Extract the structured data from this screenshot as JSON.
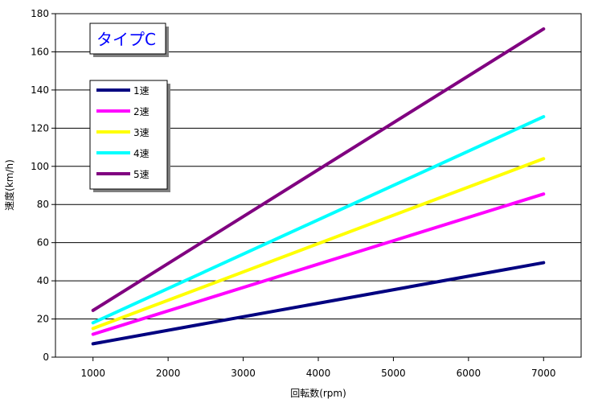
{
  "chart_data": {
    "type": "line",
    "title": "タイプC",
    "xlabel": "回転数(rpm)",
    "ylabel": "速度(km/h)",
    "x": [
      1000,
      7000
    ],
    "xlim": [
      500,
      7500
    ],
    "ylim": [
      0,
      180
    ],
    "x_ticks": [
      1000,
      2000,
      3000,
      4000,
      5000,
      6000,
      7000
    ],
    "y_ticks": [
      0,
      20,
      40,
      60,
      80,
      100,
      120,
      140,
      160,
      180
    ],
    "grid": "horizontal",
    "legend_position": "upper-left",
    "series": [
      {
        "name": "1速",
        "color": "#000080",
        "values": [
          7,
          49.5
        ]
      },
      {
        "name": "2速",
        "color": "#ff00ff",
        "values": [
          12,
          85.5
        ]
      },
      {
        "name": "3速",
        "color": "#ffff00",
        "values": [
          15,
          104
        ]
      },
      {
        "name": "4速",
        "color": "#00ffff",
        "values": [
          18,
          126
        ]
      },
      {
        "name": "5速",
        "color": "#800080",
        "values": [
          24.5,
          172
        ]
      }
    ]
  }
}
